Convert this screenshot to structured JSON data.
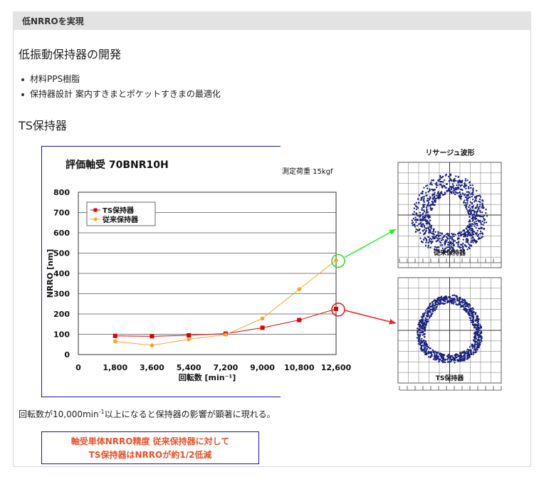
{
  "header": {
    "title": "低NRROを実現"
  },
  "section_title": "低振動保持器の開発",
  "bullets": [
    "材料PPS樹脂",
    "保持器設計 案内すきまとポケットすきまの最適化"
  ],
  "subsection_title": "TS保持器",
  "note": {
    "before": "回転数が10,000min",
    "sup": "-1",
    "after": "以上になると保持器の影響が顕著に現れる。"
  },
  "callout": {
    "line1": "軸受単体NRRO精度 従来保持器に対して",
    "line2": "TS保持器はNRROが約1/2低減"
  },
  "chart_data": [
    {
      "type": "line",
      "title": "評価軸受 70BNR10H",
      "subtitle": "測定荷重 15kgf",
      "xlabel": "回転数 [min⁻¹]",
      "ylabel": "NRRO [nm]",
      "categories": [
        "0",
        "1,800",
        "3,600",
        "5,400",
        "7,200",
        "9,000",
        "10,800",
        "12,600"
      ],
      "x": [
        0,
        1800,
        3600,
        5400,
        7200,
        9000,
        10800,
        12600
      ],
      "xlim": [
        0,
        12600
      ],
      "ylim": [
        0,
        800
      ],
      "yticks": [
        0,
        100,
        200,
        300,
        400,
        500,
        600,
        700,
        800
      ],
      "grid": true,
      "legend_position": "top-left",
      "series": [
        {
          "name": "TS保持器",
          "color": "#e00000",
          "marker": "square",
          "x": [
            1800,
            3600,
            5400,
            7200,
            9000,
            10800,
            12600
          ],
          "values": [
            92,
            90,
            95,
            103,
            132,
            170,
            225
          ]
        },
        {
          "name": "従来保持器",
          "color": "#f5a623",
          "marker": "diamond",
          "x": [
            1800,
            3600,
            5400,
            7200,
            9000,
            10800,
            12600
          ],
          "values": [
            65,
            45,
            75,
            98,
            178,
            322,
            465
          ]
        }
      ]
    },
    {
      "type": "scatter",
      "title": "リサージュ波形",
      "panels": [
        {
          "label": "従来保持器",
          "radius": 0.55,
          "band": 0.18
        },
        {
          "label": "TS保持器",
          "radius": 0.55,
          "band": 0.08
        }
      ],
      "point_color": "#1a237e"
    }
  ]
}
